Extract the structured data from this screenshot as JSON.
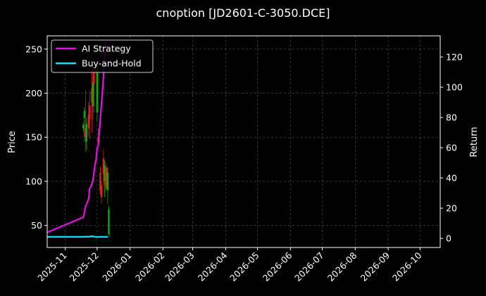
{
  "chart_data": {
    "type": "line",
    "title": "cnoption [JD2601-C-3050.DCE]",
    "ylabel_left": "Price",
    "ylabel_right": "Return",
    "ylim_left": [
      25,
      265
    ],
    "ylim_right": [
      -6,
      134
    ],
    "yticks_left": [
      50,
      100,
      150,
      200,
      250
    ],
    "yticks_right": [
      0,
      20,
      40,
      60,
      80,
      100,
      120
    ],
    "xlim": [
      "2025-10-15",
      "2026-10-20"
    ],
    "xticks": [
      "2025-11-01",
      "2025-12-01",
      "2026-01-01",
      "2026-02-01",
      "2026-03-01",
      "2026-04-01",
      "2026-05-01",
      "2026-06-01",
      "2026-07-01",
      "2026-08-01",
      "2026-09-01",
      "2026-10-01"
    ],
    "xtick_labels": [
      "2025-11",
      "2025-12",
      "2026-01",
      "2026-02",
      "2026-03",
      "2026-04",
      "2026-05",
      "2026-06",
      "2026-07",
      "2026-08",
      "2026-09",
      "2026-10"
    ],
    "grid": true,
    "legend": "top-left",
    "colors": {
      "background": "#000000",
      "ai_strategy": "#e014e0",
      "buy_hold": "#00e5ee",
      "up": "#00b300",
      "down": "#e02020",
      "grid": "#555555"
    },
    "series": [
      {
        "name": "AI Strategy",
        "axis": "right",
        "points": [
          [
            "2025-10-15",
            4
          ],
          [
            "2025-11-18",
            14
          ],
          [
            "2025-11-20",
            21
          ],
          [
            "2025-11-23",
            26
          ],
          [
            "2025-11-24",
            33
          ],
          [
            "2025-11-25",
            34
          ],
          [
            "2025-11-27",
            38
          ],
          [
            "2025-11-29",
            49
          ],
          [
            "2025-11-30",
            52
          ],
          [
            "2025-12-01",
            60
          ],
          [
            "2025-12-02",
            61
          ],
          [
            "2025-12-06",
            97
          ],
          [
            "2025-12-08",
            118
          ],
          [
            "2025-12-09",
            130
          ]
        ]
      },
      {
        "name": "Buy-and-Hold",
        "axis": "right",
        "points": [
          [
            "2025-10-15",
            1
          ],
          [
            "2025-11-18",
            1
          ],
          [
            "2025-11-20",
            1.2
          ],
          [
            "2025-11-22",
            1
          ],
          [
            "2025-11-26",
            1.4
          ],
          [
            "2025-11-28",
            1.3
          ],
          [
            "2025-11-30",
            0.9
          ],
          [
            "2025-12-03",
            1
          ],
          [
            "2025-12-11",
            1
          ]
        ]
      }
    ],
    "candles": [
      {
        "date": "2025-11-18",
        "low": 156,
        "high": 167,
        "open": 160,
        "close": 164
      },
      {
        "date": "2025-11-19",
        "low": 145,
        "high": 184,
        "open": 172,
        "close": 180
      },
      {
        "date": "2025-11-20",
        "low": 133,
        "high": 203,
        "open": 160,
        "close": 150
      },
      {
        "date": "2025-11-21",
        "low": 136,
        "high": 172,
        "open": 145,
        "close": 165
      },
      {
        "date": "2025-11-23",
        "low": 150,
        "high": 190,
        "open": 175,
        "close": 160
      },
      {
        "date": "2025-11-24",
        "low": 148,
        "high": 202,
        "open": 186,
        "close": 170
      },
      {
        "date": "2025-11-26",
        "low": 155,
        "high": 232,
        "open": 205,
        "close": 190
      },
      {
        "date": "2025-11-27",
        "low": 170,
        "high": 219,
        "open": 185,
        "close": 212
      },
      {
        "date": "2025-11-28",
        "low": 178,
        "high": 242,
        "open": 230,
        "close": 210
      },
      {
        "date": "2025-12-01",
        "low": 168,
        "high": 242,
        "open": 178,
        "close": 232
      },
      {
        "date": "2025-12-02",
        "low": 140,
        "high": 160,
        "open": 150,
        "close": 145
      },
      {
        "date": "2025-12-04",
        "low": 85,
        "high": 117,
        "open": 110,
        "close": 90
      },
      {
        "date": "2025-12-05",
        "low": 75,
        "high": 100,
        "open": 95,
        "close": 82
      },
      {
        "date": "2025-12-07",
        "low": 95,
        "high": 136,
        "open": 126,
        "close": 108
      },
      {
        "date": "2025-12-08",
        "low": 82,
        "high": 124,
        "open": 100,
        "close": 118
      },
      {
        "date": "2025-12-09",
        "low": 88,
        "high": 121,
        "open": 110,
        "close": 95
      },
      {
        "date": "2025-12-10",
        "low": 90,
        "high": 118,
        "open": 115,
        "close": 92
      },
      {
        "date": "2025-12-11",
        "low": 74,
        "high": 116,
        "open": 90,
        "close": 110
      },
      {
        "date": "2025-12-12",
        "low": 38,
        "high": 72,
        "open": 40,
        "close": 68
      }
    ]
  }
}
